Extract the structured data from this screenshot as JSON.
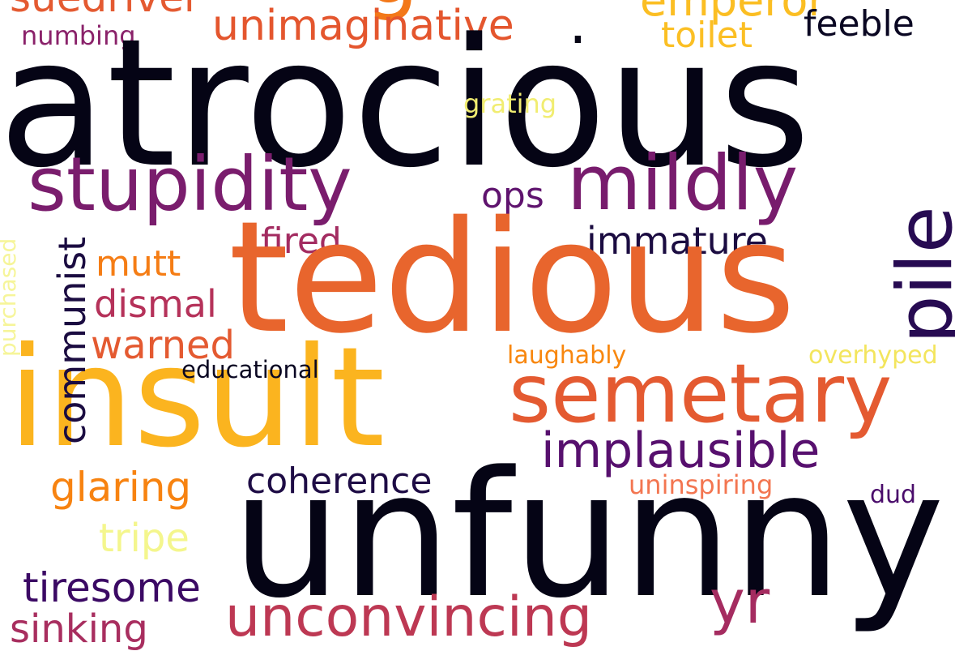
{
  "words": [
    {
      "key": "atrocious",
      "text": "atrocious",
      "color": "#050415"
    },
    {
      "key": "tedious",
      "text": "tedious",
      "color": "#e8652d"
    },
    {
      "key": "insult",
      "text": "insult",
      "color": "#fbb41f"
    },
    {
      "key": "unfunny",
      "text": "unfunny",
      "color": "#050415"
    },
    {
      "key": "semetary",
      "text": "semetary",
      "color": "#e45a31"
    },
    {
      "key": "stupidity",
      "text": "stupidity",
      "color": "#7a1d6d"
    },
    {
      "key": "mildly",
      "text": "mildly",
      "color": "#781c6d"
    },
    {
      "key": "pile",
      "text": "pile",
      "color": "#270b52"
    },
    {
      "key": "unconvincing",
      "text": "unconvincing",
      "color": "#bd3853"
    },
    {
      "key": "implausible",
      "text": "implausible",
      "color": "#57106e"
    },
    {
      "key": "unimaginative",
      "text": "unimaginative",
      "color": "#e4562e"
    },
    {
      "key": "yr",
      "text": "yr",
      "color": "#a52c60"
    },
    {
      "key": "stupid_top",
      "text": "g",
      "color": "#f37819"
    },
    {
      "key": "dot",
      "text": ".",
      "color": "#050415"
    },
    {
      "key": "emperor",
      "text": "emperor",
      "color": "#fbbe23"
    },
    {
      "key": "suedriver",
      "text": "suedriver",
      "color": "#e45a31"
    },
    {
      "key": "toilet",
      "text": "toilet",
      "color": "#fbbf24"
    },
    {
      "key": "feeble",
      "text": "feeble",
      "color": "#0a0722"
    },
    {
      "key": "numbing",
      "text": "numbing",
      "color": "#8a226a"
    },
    {
      "key": "grating",
      "text": "grating",
      "color": "#f1ed71"
    },
    {
      "key": "ops",
      "text": "ops",
      "color": "#5f136e"
    },
    {
      "key": "communist",
      "text": "communist",
      "color": "#1b0c41"
    },
    {
      "key": "fired",
      "text": "fired",
      "color": "#a32c61"
    },
    {
      "key": "immature",
      "text": "immature",
      "color": "#1b0c41"
    },
    {
      "key": "mutt",
      "text": "mutt",
      "color": "#f57d15"
    },
    {
      "key": "dismal",
      "text": "dismal",
      "color": "#b5325a"
    },
    {
      "key": "warned",
      "text": "warned",
      "color": "#e45a31"
    },
    {
      "key": "purchased",
      "text": "purchased",
      "color": "#f6f59a"
    },
    {
      "key": "educational",
      "text": "educational",
      "color": "#0a0722"
    },
    {
      "key": "laughably",
      "text": "laughably",
      "color": "#f8870e"
    },
    {
      "key": "overhyped",
      "text": "overhyped",
      "color": "#f3e55d"
    },
    {
      "key": "coherence",
      "text": "coherence",
      "color": "#1e0c45"
    },
    {
      "key": "glaring",
      "text": "glaring",
      "color": "#f78311"
    },
    {
      "key": "uninspiring",
      "text": "uninspiring",
      "color": "#f37651"
    },
    {
      "key": "dud",
      "text": "dud",
      "color": "#4a0c6b"
    },
    {
      "key": "tripe",
      "text": "tripe",
      "color": "#f4f68d"
    },
    {
      "key": "tiresome",
      "text": "tiresome",
      "color": "#3b0964"
    },
    {
      "key": "sinking",
      "text": "sinking",
      "color": "#a82e5f"
    }
  ]
}
